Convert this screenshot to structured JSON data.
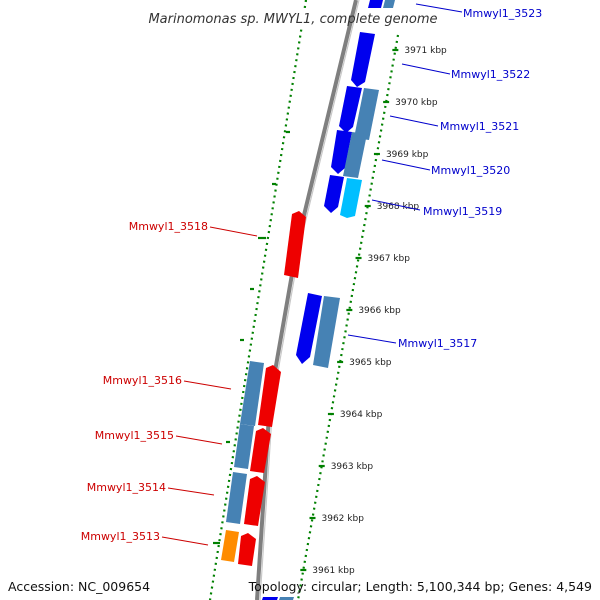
{
  "title": "Marinomonas sp. MWYL1, complete genome",
  "footer": {
    "accession": "Accession: NC_009654",
    "topology": "Topology: circular; Length: 5,100,344 bp; Genes: 4,549"
  },
  "kbp_ticks": [
    {
      "label": "3971 kbp",
      "pos": 3971
    },
    {
      "label": "3970 kbp",
      "pos": 3970
    },
    {
      "label": "3969 kbp",
      "pos": 3969
    },
    {
      "label": "3968 kbp",
      "pos": 3968
    },
    {
      "label": "3967 kbp",
      "pos": 3967
    },
    {
      "label": "3966 kbp",
      "pos": 3966
    },
    {
      "label": "3965 kbp",
      "pos": 3965
    },
    {
      "label": "3964 kbp",
      "pos": 3964
    },
    {
      "label": "3963 kbp",
      "pos": 3963
    },
    {
      "label": "3962 kbp",
      "pos": 3962
    },
    {
      "label": "3961 kbp",
      "pos": 3961
    }
  ],
  "colors": {
    "forward_cds": "#0000ee",
    "reverse_cds": "#ee0000",
    "forward_other": "#4682b4",
    "highlight_cyan": "#00bfff",
    "highlight_orange": "#ff8c00",
    "backbone": "#7f7f7f",
    "dotted_ring": "#008000",
    "label_forward": "#0000cc",
    "label_reverse": "#cc0000"
  },
  "labels_forward": [
    {
      "text": "Mmwyl1_3523"
    },
    {
      "text": "Mmwyl1_3522"
    },
    {
      "text": "Mmwyl1_3521"
    },
    {
      "text": "Mmwyl1_3520"
    },
    {
      "text": "Mmwyl1_3519"
    },
    {
      "text": "Mmwyl1_3517"
    }
  ],
  "labels_reverse": [
    {
      "text": "Mmwyl1_3518"
    },
    {
      "text": "Mmwyl1_3516"
    },
    {
      "text": "Mmwyl1_3515"
    },
    {
      "text": "Mmwyl1_3514"
    },
    {
      "text": "Mmwyl1_3513"
    }
  ]
}
